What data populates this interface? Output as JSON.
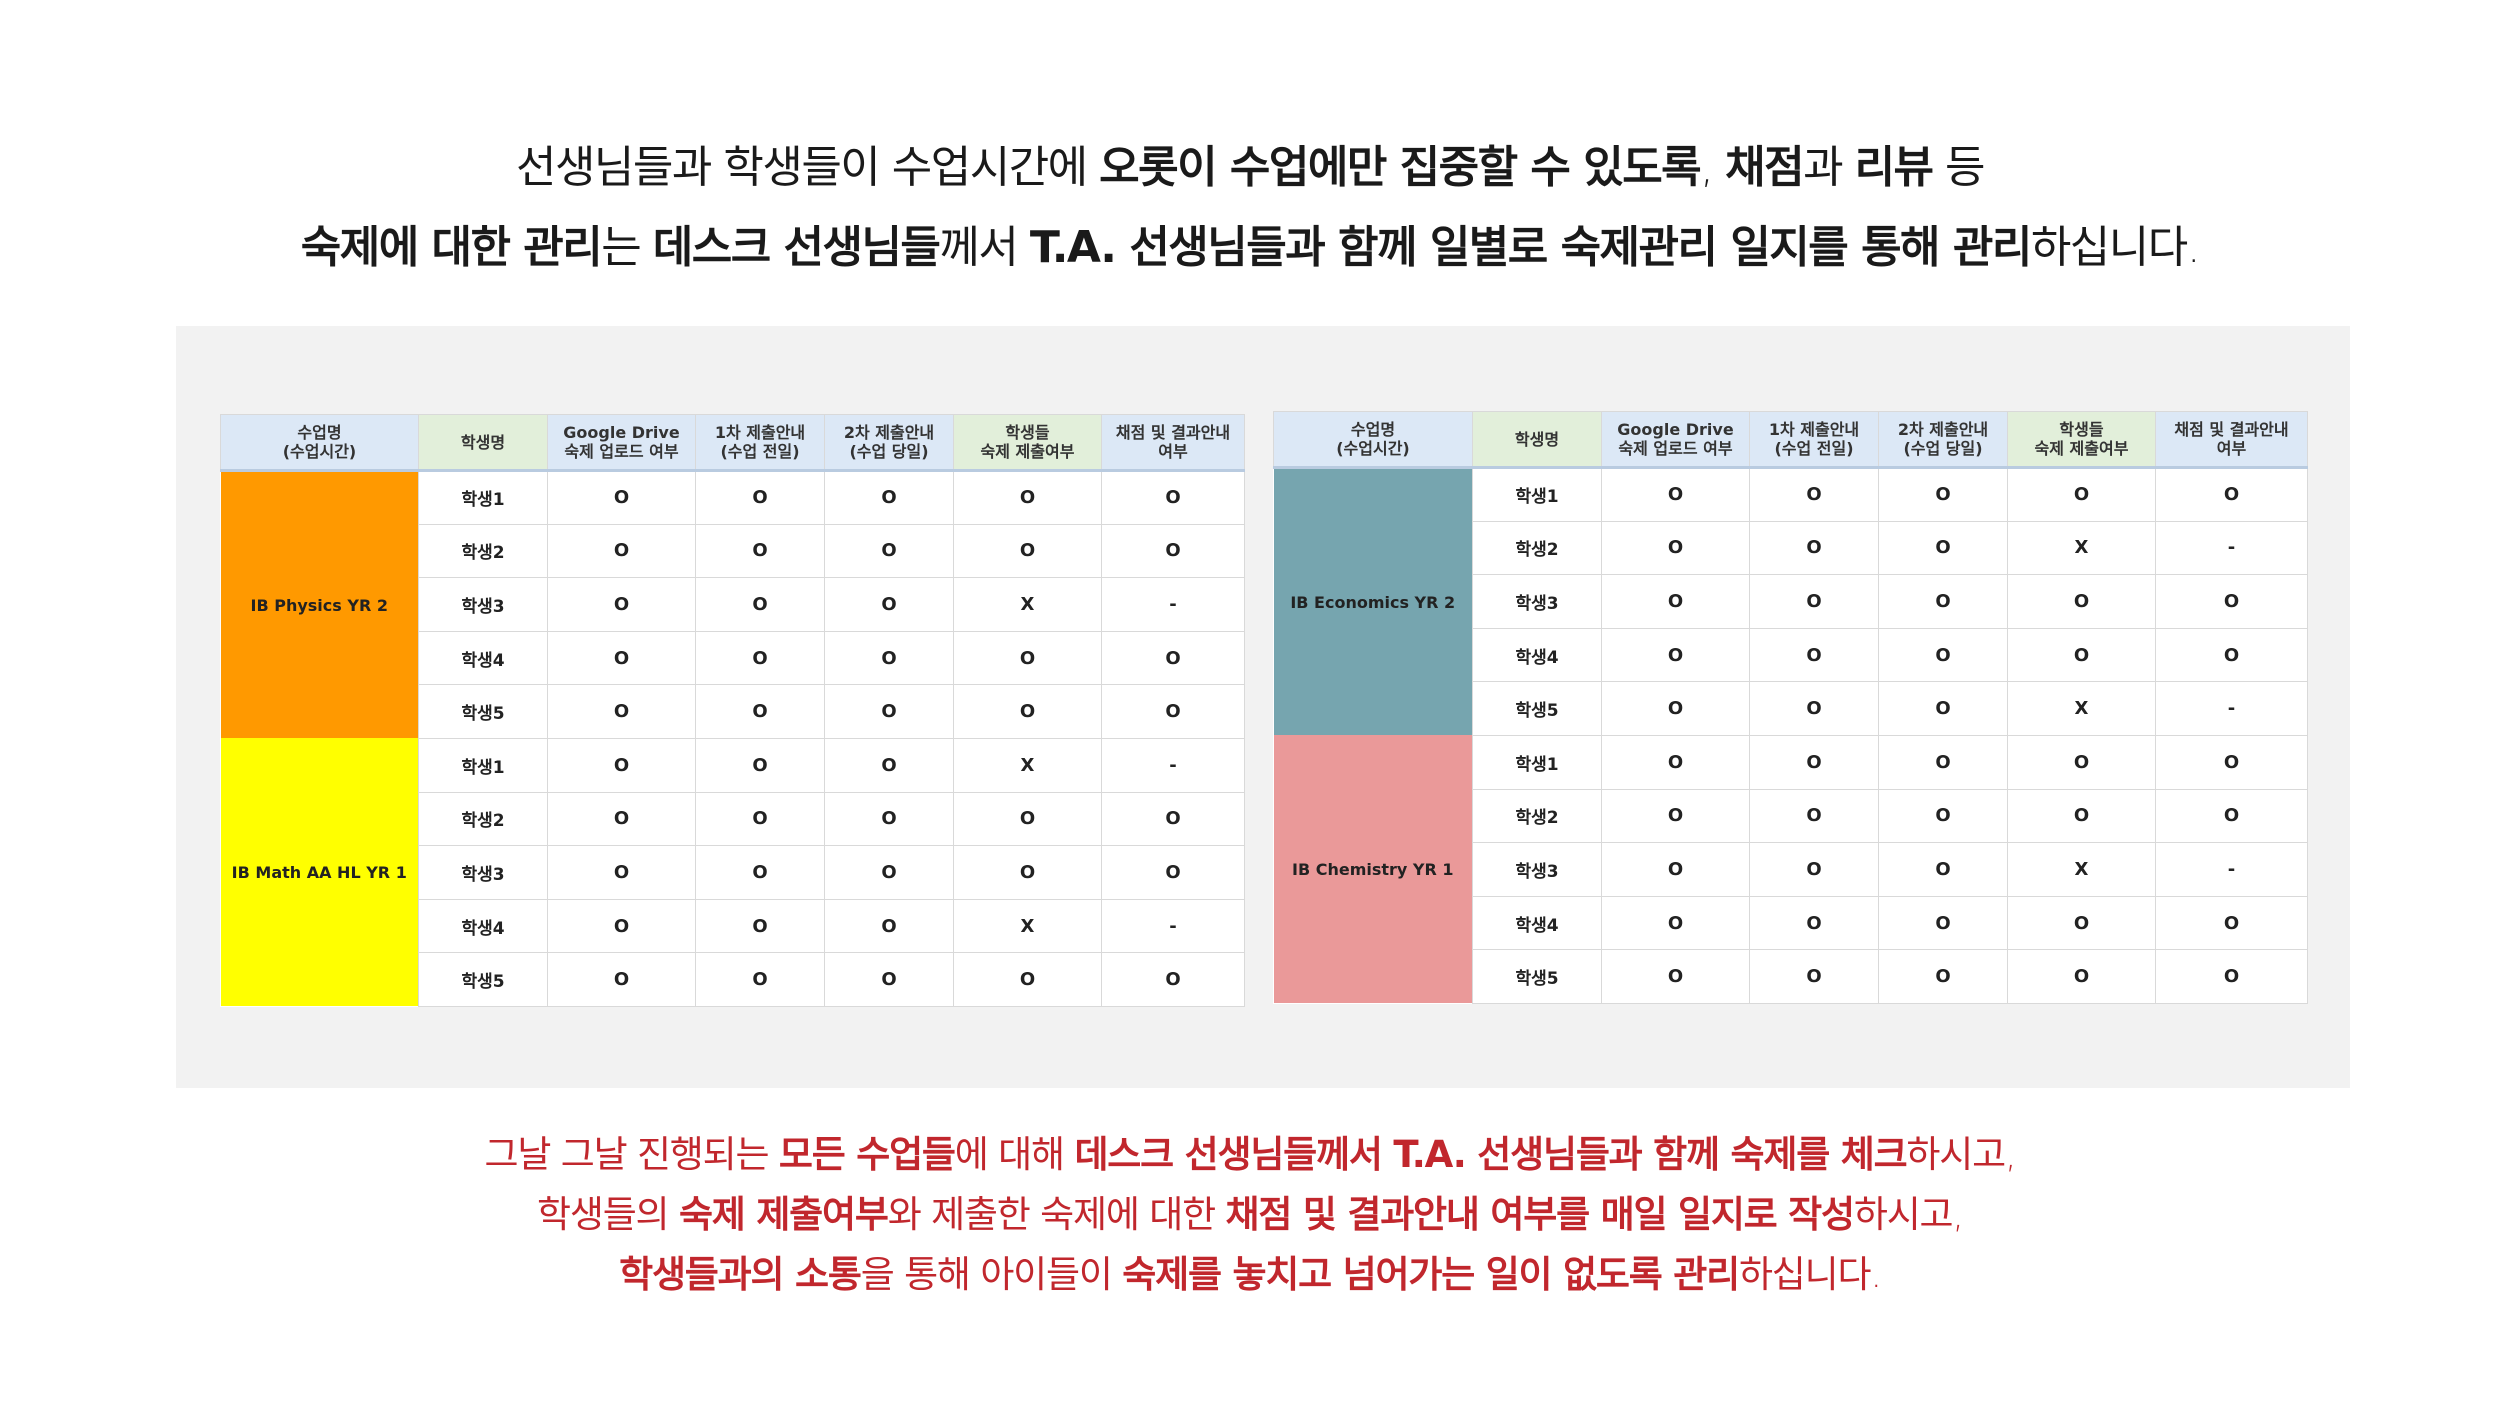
{
  "intro": [
    [
      {
        "t": "선생님들과 학생들이 수업시간에 ",
        "b": false
      },
      {
        "t": "오롯이 수업에만 집중할 수 있도록",
        "b": true
      },
      {
        "t": ", ",
        "b": false
      },
      {
        "t": "채점",
        "b": true
      },
      {
        "t": "과 ",
        "b": false
      },
      {
        "t": "리뷰",
        "b": true
      },
      {
        "t": " 등",
        "b": false
      }
    ],
    [
      {
        "t": "숙제에 대한 관리",
        "b": true
      },
      {
        "t": "는 ",
        "b": false
      },
      {
        "t": "데스크 선생님들",
        "b": true
      },
      {
        "t": "께서 ",
        "b": false
      },
      {
        "t": "T.A. 선생님들과 함께 일별로 숙제관리 일지를 통해 관리",
        "b": true
      },
      {
        "t": "하십니다.",
        "b": false
      }
    ]
  ],
  "table_headers": [
    "수업명\n(수업시간)",
    "학생명",
    "Google Drive\n숙제 업로드 여부",
    "1차 제출안내\n(수업 전일)",
    "2차 제출안내\n(수업 당일)",
    "학생들\n숙제 제출여부",
    "채점 및 결과안내\n여부"
  ],
  "tables": [
    {
      "groups": [
        {
          "class_name": "IB Physics YR 2",
          "color": "#ff9900",
          "rows": [
            [
              "학생1",
              "O",
              "O",
              "O",
              "O",
              "O"
            ],
            [
              "학생2",
              "O",
              "O",
              "O",
              "O",
              "O"
            ],
            [
              "학생3",
              "O",
              "O",
              "O",
              "X",
              "-"
            ],
            [
              "학생4",
              "O",
              "O",
              "O",
              "O",
              "O"
            ],
            [
              "학생5",
              "O",
              "O",
              "O",
              "O",
              "O"
            ]
          ]
        },
        {
          "class_name": "IB Math AA HL YR 1",
          "color": "#ffff00",
          "rows": [
            [
              "학생1",
              "O",
              "O",
              "O",
              "X",
              "-"
            ],
            [
              "학생2",
              "O",
              "O",
              "O",
              "O",
              "O"
            ],
            [
              "학생3",
              "O",
              "O",
              "O",
              "O",
              "O"
            ],
            [
              "학생4",
              "O",
              "O",
              "O",
              "X",
              "-"
            ],
            [
              "학생5",
              "O",
              "O",
              "O",
              "O",
              "O"
            ]
          ]
        }
      ]
    },
    {
      "groups": [
        {
          "class_name": "IB Economics YR 2",
          "color": "#76a5af",
          "rows": [
            [
              "학생1",
              "O",
              "O",
              "O",
              "O",
              "O"
            ],
            [
              "학생2",
              "O",
              "O",
              "O",
              "X",
              "-"
            ],
            [
              "학생3",
              "O",
              "O",
              "O",
              "O",
              "O"
            ],
            [
              "학생4",
              "O",
              "O",
              "O",
              "O",
              "O"
            ],
            [
              "학생5",
              "O",
              "O",
              "O",
              "X",
              "-"
            ]
          ]
        },
        {
          "class_name": "IB Chemistry YR 1",
          "color": "#ea9999",
          "rows": [
            [
              "학생1",
              "O",
              "O",
              "O",
              "O",
              "O"
            ],
            [
              "학생2",
              "O",
              "O",
              "O",
              "O",
              "O"
            ],
            [
              "학생3",
              "O",
              "O",
              "O",
              "X",
              "-"
            ],
            [
              "학생4",
              "O",
              "O",
              "O",
              "O",
              "O"
            ],
            [
              "학생5",
              "O",
              "O",
              "O",
              "O",
              "O"
            ]
          ]
        }
      ]
    }
  ],
  "closing": [
    [
      {
        "t": "그날 그날 진행되는 ",
        "b": false
      },
      {
        "t": "모든 수업들",
        "b": true
      },
      {
        "t": "에 대해 ",
        "b": false
      },
      {
        "t": "데스크 선생님들께서 T.A. 선생님들과 함께 숙제를 체크",
        "b": true
      },
      {
        "t": "하시고,",
        "b": false
      }
    ],
    [
      {
        "t": "학생들의 ",
        "b": false
      },
      {
        "t": "숙제 제출여부",
        "b": true
      },
      {
        "t": "와 제출한 숙제에 대한 ",
        "b": false
      },
      {
        "t": "채점 및 결과안내 여부를 매일 일지로 작성",
        "b": true
      },
      {
        "t": "하시고,",
        "b": false
      }
    ],
    [
      {
        "t": "학생들과의 소통",
        "b": true
      },
      {
        "t": "을 통해 아이들이 ",
        "b": false
      },
      {
        "t": "숙제를 놓치고 넘어가는 일이 없도록 관리",
        "b": true
      },
      {
        "t": "하십니다.",
        "b": false
      }
    ]
  ]
}
